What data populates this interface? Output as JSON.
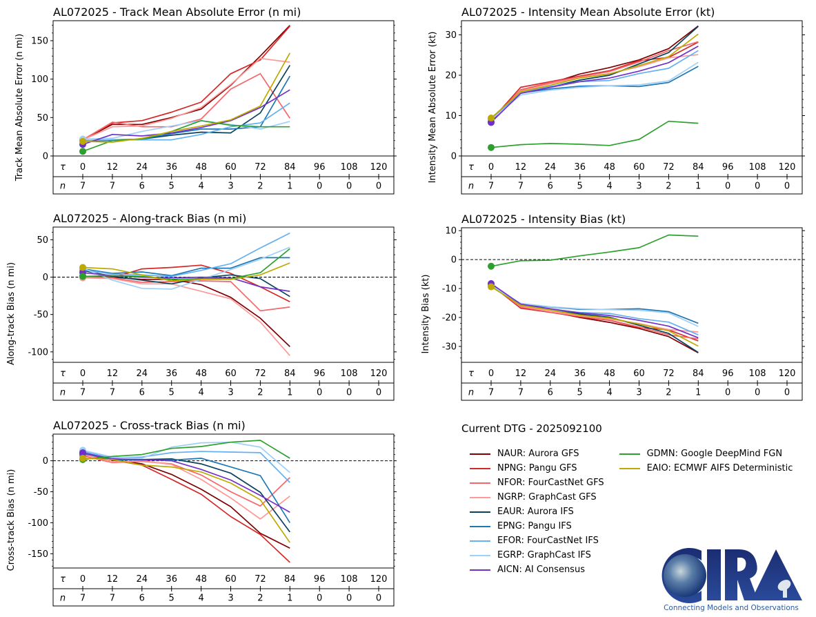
{
  "storm_id": "AL072025",
  "current_dtg_label": "Current DTG - 2025092100",
  "table_labels": {
    "tau": "τ",
    "n": "n"
  },
  "tau_ticks": [
    "0",
    "12",
    "24",
    "36",
    "48",
    "60",
    "72",
    "84",
    "96",
    "108",
    "120"
  ],
  "n_counts": [
    "7",
    "7",
    "6",
    "5",
    "4",
    "3",
    "2",
    "1",
    "0",
    "0",
    "0"
  ],
  "models": [
    {
      "id": "NAUR",
      "label": "NAUR: Aurora GFS",
      "color": "#7f0000"
    },
    {
      "id": "NPNG",
      "label": "NPNG: Pangu GFS",
      "color": "#d62728"
    },
    {
      "id": "NFOR",
      "label": "NFOR: FourCastNet GFS",
      "color": "#f4676a"
    },
    {
      "id": "NGRP",
      "label": "NGRP: GraphCast GFS",
      "color": "#ff9896"
    },
    {
      "id": "EAUR",
      "label": "EAUR: Aurora IFS",
      "color": "#08425e"
    },
    {
      "id": "EPNG",
      "label": "EPNG: Pangu IFS",
      "color": "#1f77b4"
    },
    {
      "id": "EFOR",
      "label": "EFOR: FourCastNet IFS",
      "color": "#63b0f2"
    },
    {
      "id": "EGRP",
      "label": "EGRP: GraphCast IFS",
      "color": "#9ecff8"
    },
    {
      "id": "AICN",
      "label": "AICN: AI Consensus",
      "color": "#7030c8"
    },
    {
      "id": "GDMN",
      "label": "GDMN: Google DeepMind FGN",
      "color": "#2ca02c"
    },
    {
      "id": "EAIO",
      "label": "EAIO: ECMWF AIFS Deterministic",
      "color": "#bcaa00"
    }
  ],
  "logo": {
    "text": "CIRA",
    "tagline": "Connecting Models and Observations"
  },
  "chart_data": [
    {
      "id": "track_mae",
      "type": "line",
      "title": "AL072025 - Track Mean Absolute Error (n mi)",
      "ylabel": "Track Mean Absolute Error (n mi)",
      "xlabel": "τ",
      "x": [
        0,
        12,
        24,
        36,
        48,
        60,
        72,
        84
      ],
      "ylim": [
        0,
        176
      ],
      "yticks": [
        0,
        50,
        100,
        150
      ],
      "zero_line": false,
      "series": [
        {
          "name": "NAUR",
          "values": [
            21,
            41,
            41,
            50,
            61,
            92,
            130,
            170
          ]
        },
        {
          "name": "NPNG",
          "values": [
            21,
            43,
            46,
            57,
            70,
            107,
            125,
            169
          ]
        },
        {
          "name": "NFOR",
          "values": [
            21,
            44,
            38,
            38,
            48,
            87,
            107,
            49
          ]
        },
        {
          "name": "NGRP",
          "values": [
            21,
            38,
            39,
            49,
            63,
            93,
            127,
            122
          ]
        },
        {
          "name": "EAUR",
          "values": [
            20,
            20,
            22,
            27,
            31,
            30,
            56,
            118
          ]
        },
        {
          "name": "EPNG",
          "values": [
            20,
            21,
            22,
            29,
            35,
            35,
            38,
            104
          ]
        },
        {
          "name": "EFOR",
          "values": [
            20,
            21,
            21,
            21,
            28,
            38,
            43,
            69
          ]
        },
        {
          "name": "EGRP",
          "values": [
            22,
            23,
            32,
            39,
            46,
            41,
            35,
            45
          ]
        },
        {
          "name": "AICN",
          "values": [
            15,
            28,
            26,
            30,
            37,
            46,
            63,
            86
          ]
        },
        {
          "name": "GDMN",
          "values": [
            6,
            20,
            22,
            32,
            46,
            40,
            38,
            38
          ]
        },
        {
          "name": "EAIO",
          "values": [
            19,
            18,
            23,
            32,
            39,
            47,
            65,
            134
          ]
        }
      ]
    },
    {
      "id": "intensity_mae",
      "type": "line",
      "title": "AL072025 - Intensity Mean Absolute Error (kt)",
      "ylabel": "Intensity Mean Absolute Error (kt)",
      "xlabel": "τ",
      "x": [
        0,
        12,
        24,
        36,
        48,
        60,
        72,
        84
      ],
      "ylim": [
        0,
        33.5
      ],
      "yticks": [
        0,
        10,
        20,
        30
      ],
      "zero_line": false,
      "series": [
        {
          "name": "NAUR",
          "values": [
            8.6,
            16.2,
            18.0,
            20.3,
            21.9,
            23.8,
            26.6,
            32.2
          ]
        },
        {
          "name": "NPNG",
          "values": [
            8.8,
            17.0,
            18.4,
            19.8,
            21.1,
            23.6,
            24.4,
            28.2
          ]
        },
        {
          "name": "NFOR",
          "values": [
            8.7,
            16.4,
            18.2,
            19.6,
            20.9,
            23.3,
            26.1,
            28.3
          ]
        },
        {
          "name": "NGRP",
          "values": [
            8.8,
            16.1,
            17.9,
            19.4,
            20.4,
            22.1,
            24.3,
            25.1
          ]
        },
        {
          "name": "EAUR",
          "values": [
            8.9,
            15.8,
            17.1,
            18.8,
            20.0,
            22.8,
            25.6,
            32.1
          ]
        },
        {
          "name": "EPNG",
          "values": [
            8.9,
            15.6,
            16.6,
            17.3,
            17.4,
            17.2,
            18.2,
            22.2
          ]
        },
        {
          "name": "EFOR",
          "values": [
            8.9,
            15.7,
            17.2,
            18.4,
            18.7,
            20.4,
            21.7,
            26.1
          ]
        },
        {
          "name": "EGRP",
          "values": [
            9.0,
            15.1,
            16.3,
            17.0,
            17.4,
            17.6,
            18.6,
            23.2
          ]
        },
        {
          "name": "AICN",
          "values": [
            8.3,
            15.5,
            17.0,
            18.4,
            19.3,
            21.0,
            23.1,
            27.2
          ]
        },
        {
          "name": "GDMN",
          "values": [
            2.1,
            2.8,
            3.1,
            2.9,
            2.6,
            4.1,
            8.6,
            8.1
          ]
        },
        {
          "name": "EAIO",
          "values": [
            9.4,
            15.9,
            17.5,
            19.3,
            20.3,
            22.4,
            24.6,
            30.2
          ]
        }
      ]
    },
    {
      "id": "along_track_bias",
      "type": "line",
      "title": "AL072025 - Along-track Bias (n mi)",
      "ylabel": "Along-track Bias (n mi)",
      "xlabel": "τ",
      "x": [
        0,
        12,
        24,
        36,
        48,
        60,
        72,
        84
      ],
      "ylim": [
        -114,
        67
      ],
      "yticks": [
        -100,
        -50,
        0,
        50
      ],
      "zero_line": true,
      "series": [
        {
          "name": "NAUR",
          "values": [
            1,
            0,
            -3,
            -3,
            -10,
            -27,
            -55,
            -93
          ]
        },
        {
          "name": "NPNG",
          "values": [
            1,
            -1,
            11,
            13,
            16,
            5,
            -13,
            -33
          ]
        },
        {
          "name": "NFOR",
          "values": [
            0,
            -1,
            -7,
            -6,
            -5,
            -6,
            -45,
            -40
          ]
        },
        {
          "name": "NGRP",
          "values": [
            -1,
            -2,
            -9,
            -9,
            -19,
            -29,
            -60,
            -105
          ]
        },
        {
          "name": "EAUR",
          "values": [
            9,
            1,
            -4,
            -9,
            -1,
            3,
            -2,
            -26
          ]
        },
        {
          "name": "EPNG",
          "values": [
            11,
            5,
            7,
            2,
            12,
            12,
            26,
            26
          ]
        },
        {
          "name": "EFOR",
          "values": [
            10,
            4,
            3,
            1,
            9,
            18,
            39,
            59
          ]
        },
        {
          "name": "EGRP",
          "values": [
            12,
            -4,
            -15,
            -16,
            -3,
            10,
            24,
            40
          ]
        },
        {
          "name": "AICN",
          "values": [
            6,
            2,
            0,
            -1,
            0,
            -1,
            -13,
            -19
          ]
        },
        {
          "name": "GDMN",
          "values": [
            1,
            2,
            1,
            -3,
            -2,
            -2,
            6,
            38
          ]
        },
        {
          "name": "EAIO",
          "values": [
            13,
            11,
            3,
            -5,
            -3,
            -3,
            3,
            19
          ]
        }
      ]
    },
    {
      "id": "intensity_bias",
      "type": "line",
      "title": "AL072025 - Intensity Bias (kt)",
      "ylabel": "Intensity Bias (kt)",
      "xlabel": "τ",
      "x": [
        0,
        12,
        24,
        36,
        48,
        60,
        72,
        84
      ],
      "ylim": [
        -35.5,
        11
      ],
      "yticks": [
        -30,
        -20,
        -10,
        0,
        10
      ],
      "zero_line": true,
      "series": [
        {
          "name": "NAUR",
          "values": [
            -8.6,
            -16.2,
            -18.0,
            -20.0,
            -21.7,
            -23.8,
            -26.6,
            -32.2
          ]
        },
        {
          "name": "NPNG",
          "values": [
            -8.8,
            -16.8,
            -18.2,
            -19.8,
            -21.0,
            -23.5,
            -24.3,
            -28.1
          ]
        },
        {
          "name": "NFOR",
          "values": [
            -8.7,
            -16.4,
            -18.1,
            -19.6,
            -20.9,
            -23.3,
            -26.0,
            -27.4
          ]
        },
        {
          "name": "NGRP",
          "values": [
            -8.8,
            -16.1,
            -17.9,
            -19.4,
            -20.5,
            -22.1,
            -24.2,
            -25.0
          ]
        },
        {
          "name": "EAUR",
          "values": [
            -8.9,
            -15.8,
            -17.1,
            -18.8,
            -19.9,
            -22.7,
            -25.5,
            -32.1
          ]
        },
        {
          "name": "EPNG",
          "values": [
            -8.9,
            -15.4,
            -16.4,
            -17.2,
            -17.2,
            -17.0,
            -18.0,
            -22.0
          ]
        },
        {
          "name": "EFOR",
          "values": [
            -8.9,
            -15.6,
            -17.2,
            -18.3,
            -18.6,
            -20.4,
            -21.6,
            -26.0
          ]
        },
        {
          "name": "EGRP",
          "values": [
            -9.0,
            -15.1,
            -16.3,
            -17.0,
            -17.3,
            -17.5,
            -18.4,
            -23.1
          ]
        },
        {
          "name": "AICN",
          "values": [
            -8.3,
            -15.4,
            -17.0,
            -18.4,
            -19.3,
            -21.0,
            -23.0,
            -27.0
          ]
        },
        {
          "name": "GDMN",
          "values": [
            -2.3,
            -0.4,
            -0.2,
            1.3,
            2.6,
            4.1,
            8.5,
            8.1
          ]
        },
        {
          "name": "EAIO",
          "values": [
            -9.4,
            -15.8,
            -17.4,
            -19.2,
            -20.2,
            -22.3,
            -24.6,
            -29.9
          ]
        }
      ]
    },
    {
      "id": "cross_track_bias",
      "type": "line",
      "title": "AL072025 - Cross-track Bias (n mi)",
      "ylabel": "Cross-track Bias (n mi)",
      "xlabel": "τ",
      "x": [
        0,
        12,
        24,
        36,
        48,
        60,
        72,
        84
      ],
      "ylim": [
        -173,
        43
      ],
      "yticks": [
        -150,
        -100,
        -50,
        0
      ],
      "zero_line": true,
      "series": [
        {
          "name": "NAUR",
          "values": [
            10,
            2,
            -5,
            -22,
            -46,
            -74,
            -117,
            -141
          ]
        },
        {
          "name": "NPNG",
          "values": [
            10,
            1,
            -7,
            -30,
            -54,
            -90,
            -119,
            -164
          ]
        },
        {
          "name": "NFOR",
          "values": [
            8,
            -3,
            -1,
            -5,
            -23,
            -50,
            -73,
            -27
          ]
        },
        {
          "name": "NGRP",
          "values": [
            11,
            -2,
            0,
            -6,
            -30,
            -60,
            -94,
            -57
          ]
        },
        {
          "name": "EAUR",
          "values": [
            12,
            2,
            2,
            3,
            -5,
            -20,
            -51,
            -115
          ]
        },
        {
          "name": "EPNG",
          "values": [
            12,
            2,
            1,
            1,
            4,
            -10,
            -24,
            -100
          ]
        },
        {
          "name": "EFOR",
          "values": [
            15,
            5,
            6,
            13,
            15,
            14,
            13,
            -35
          ]
        },
        {
          "name": "EGRP",
          "values": [
            17,
            6,
            4,
            22,
            29,
            30,
            22,
            -19
          ]
        },
        {
          "name": "AICN",
          "values": [
            13,
            3,
            2,
            0,
            -14,
            -31,
            -56,
            -83
          ]
        },
        {
          "name": "GDMN",
          "values": [
            2,
            7,
            10,
            20,
            23,
            30,
            33,
            4
          ]
        },
        {
          "name": "EAIO",
          "values": [
            4,
            2,
            -7,
            -10,
            -18,
            -36,
            -63,
            -132
          ]
        }
      ]
    }
  ]
}
